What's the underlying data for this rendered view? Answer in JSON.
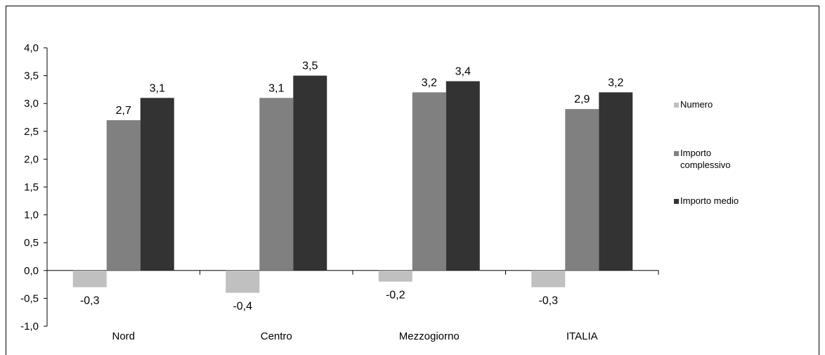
{
  "chart_data": {
    "type": "bar",
    "categories": [
      "Nord",
      "Centro",
      "Mezzogiorno",
      "ITALIA"
    ],
    "series": [
      {
        "name": "Numero",
        "values": [
          -0.3,
          -0.4,
          -0.2,
          -0.3
        ],
        "labels": [
          "-0,3",
          "-0,4",
          "-0,2",
          "-0,3"
        ],
        "color": "#c0c0c0"
      },
      {
        "name": "Importo complessivo",
        "legend_lines": [
          "Importo",
          "complessivo"
        ],
        "values": [
          2.7,
          3.1,
          3.2,
          2.9
        ],
        "labels": [
          "2,7",
          "3,1",
          "3,2",
          "2,9"
        ],
        "color": "#808080"
      },
      {
        "name": "Importo medio",
        "values": [
          3.1,
          3.5,
          3.4,
          3.2
        ],
        "labels": [
          "3,1",
          "3,5",
          "3,4",
          "3,2"
        ],
        "color": "#333333"
      }
    ],
    "ylim": [
      -1.0,
      4.0
    ],
    "yticks": [
      "-1,0",
      "-0,5",
      "0,0",
      "0,5",
      "1,0",
      "1,5",
      "2,0",
      "2,5",
      "3,0",
      "3,5",
      "4,0"
    ],
    "legend_position": "right",
    "grid": false
  }
}
